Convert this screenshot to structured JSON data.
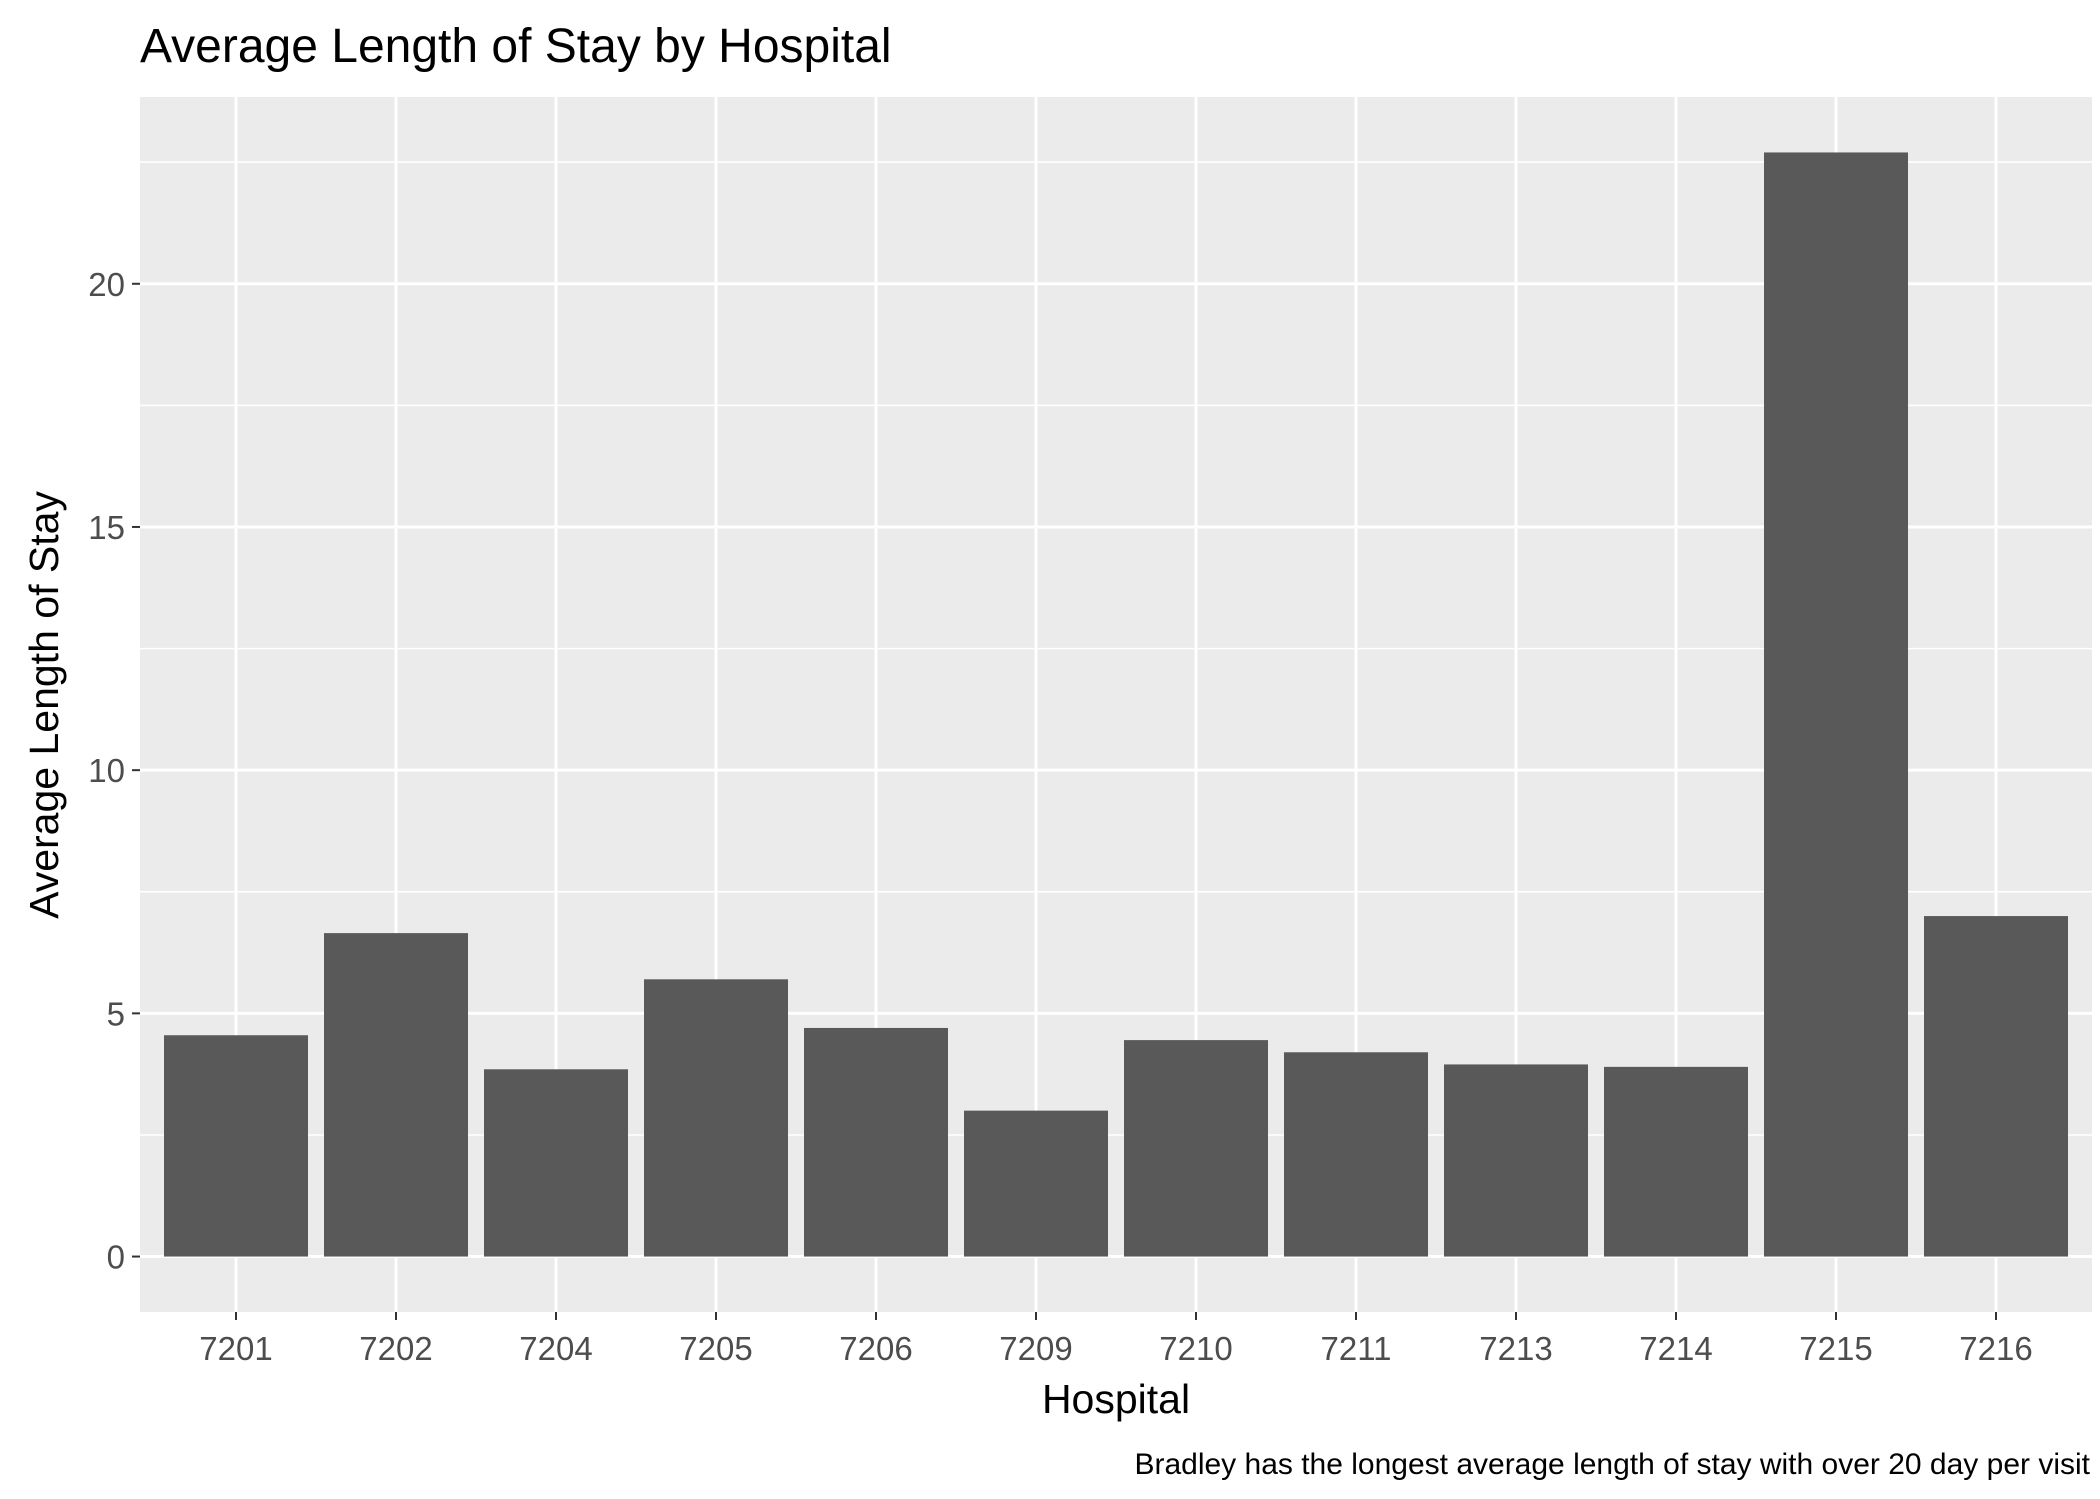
{
  "chart_data": {
    "type": "bar",
    "title": "Average Length of Stay by Hospital",
    "xlabel": "Hospital",
    "ylabel": "Average Length of Stay",
    "caption": "Bradley has the longest average length of stay with over 20 day per visit",
    "categories": [
      "7201",
      "7202",
      "7204",
      "7205",
      "7206",
      "7209",
      "7210",
      "7211",
      "7213",
      "7214",
      "7215",
      "7216"
    ],
    "values": [
      4.55,
      6.65,
      3.85,
      5.7,
      4.7,
      3.0,
      4.45,
      4.2,
      3.95,
      3.9,
      22.7,
      7.0
    ],
    "ylim": [
      -1.14,
      23.84
    ],
    "yticks": [
      0,
      5,
      10,
      15,
      20
    ],
    "grid": true,
    "legend": "none",
    "colors": {
      "panel": "#ebebeb",
      "grid": "#ffffff",
      "bar": "#595959",
      "tick": "#333333"
    }
  }
}
